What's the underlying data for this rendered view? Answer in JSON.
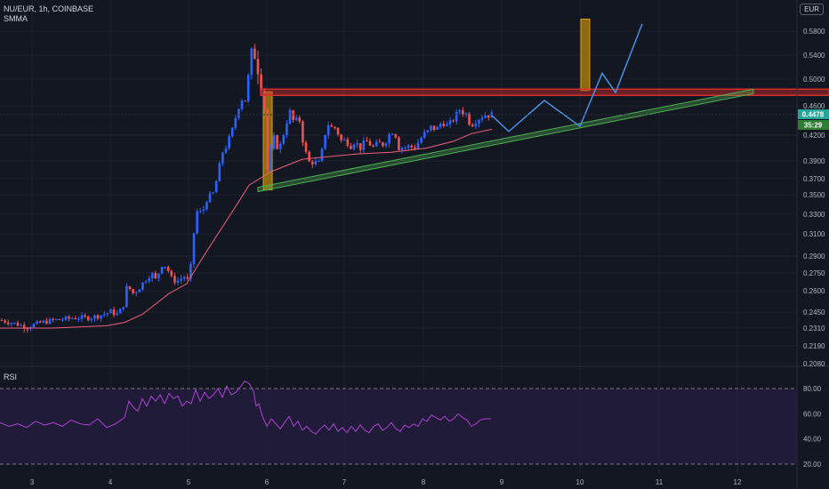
{
  "header": {
    "title": "NU/EUR, 1h, COINBASE",
    "indicator": "SMMA",
    "currency": "EUR"
  },
  "rsi_panel": {
    "label": "RSI",
    "levels": [
      "80.00",
      "60.00",
      "40.00",
      "20.00"
    ]
  },
  "price_tag": {
    "value": "0.4478",
    "timer": "35:29"
  },
  "colors": {
    "bg": "#131722",
    "up": "#2962ff",
    "down": "#ef5350",
    "smma": "#f06078",
    "rsi": "#b042d6",
    "resistance": "#d32f2f",
    "support": "#4caf50",
    "box": "#b8860b",
    "projection": "#4a90e2"
  },
  "chart_data": {
    "type": "candlestick",
    "y_ticks": [
      "0.5800",
      "0.5400",
      "0.5000",
      "0.4600",
      "0.4200",
      "0.3900",
      "0.3700",
      "0.3500",
      "0.3300",
      "0.3100",
      "0.2900",
      "0.2750",
      "0.2600",
      "0.2450",
      "0.2310",
      "0.2190",
      "0.2080"
    ],
    "x_ticks": [
      "3",
      "4",
      "5",
      "6",
      "7",
      "8",
      "9",
      "10",
      "11",
      "12"
    ],
    "close_path": [
      [
        0,
        0.238
      ],
      [
        12,
        0.236
      ],
      [
        30,
        0.232
      ],
      [
        47,
        0.236
      ],
      [
        62,
        0.238
      ],
      [
        84,
        0.24
      ],
      [
        100,
        0.24
      ],
      [
        112,
        0.242
      ],
      [
        124,
        0.245
      ],
      [
        132,
        0.243
      ],
      [
        138,
        0.248
      ],
      [
        143,
        0.264
      ],
      [
        150,
        0.258
      ],
      [
        156,
        0.262
      ],
      [
        162,
        0.268
      ],
      [
        170,
        0.275
      ],
      [
        176,
        0.268
      ],
      [
        181,
        0.283
      ],
      [
        187,
        0.281
      ],
      [
        193,
        0.27
      ],
      [
        199,
        0.268
      ],
      [
        207,
        0.272
      ],
      [
        213,
        0.267
      ],
      [
        217,
        0.305
      ],
      [
        222,
        0.335
      ],
      [
        227,
        0.33
      ],
      [
        232,
        0.345
      ],
      [
        240,
        0.352
      ],
      [
        245,
        0.375
      ],
      [
        250,
        0.4
      ],
      [
        256,
        0.41
      ],
      [
        262,
        0.43
      ],
      [
        267,
        0.455
      ],
      [
        272,
        0.47
      ],
      [
        277,
        0.468
      ],
      [
        281,
        0.535
      ],
      [
        286,
        0.545
      ],
      [
        289,
        0.525
      ],
      [
        293,
        0.502
      ],
      [
        297,
        0.465
      ],
      [
        300,
        0.375
      ],
      [
        305,
        0.405
      ],
      [
        309,
        0.42
      ],
      [
        313,
        0.4
      ],
      [
        317,
        0.415
      ],
      [
        321,
        0.43
      ],
      [
        325,
        0.455
      ],
      [
        329,
        0.44
      ],
      [
        333,
        0.44
      ],
      [
        337,
        0.44
      ],
      [
        341,
        0.41
      ],
      [
        345,
        0.395
      ],
      [
        349,
        0.385
      ],
      [
        353,
        0.392
      ],
      [
        357,
        0.383
      ],
      [
        361,
        0.395
      ],
      [
        365,
        0.42
      ],
      [
        369,
        0.435
      ],
      [
        373,
        0.43
      ],
      [
        377,
        0.43
      ],
      [
        381,
        0.42
      ],
      [
        385,
        0.41
      ],
      [
        389,
        0.417
      ],
      [
        393,
        0.405
      ],
      [
        397,
        0.413
      ],
      [
        401,
        0.41
      ],
      [
        405,
        0.405
      ],
      [
        409,
        0.41
      ],
      [
        413,
        0.413
      ],
      [
        417,
        0.408
      ],
      [
        421,
        0.405
      ],
      [
        425,
        0.412
      ],
      [
        429,
        0.408
      ],
      [
        433,
        0.412
      ],
      [
        437,
        0.42
      ],
      [
        441,
        0.425
      ],
      [
        445,
        0.42
      ],
      [
        449,
        0.403
      ],
      [
        453,
        0.407
      ],
      [
        457,
        0.405
      ],
      [
        461,
        0.408
      ],
      [
        465,
        0.404
      ],
      [
        469,
        0.41
      ],
      [
        473,
        0.416
      ],
      [
        477,
        0.422
      ],
      [
        481,
        0.425
      ],
      [
        485,
        0.432
      ],
      [
        489,
        0.428
      ],
      [
        493,
        0.43
      ],
      [
        497,
        0.44
      ],
      [
        501,
        0.432
      ],
      [
        505,
        0.435
      ],
      [
        509,
        0.44
      ],
      [
        513,
        0.448
      ],
      [
        517,
        0.455
      ],
      [
        521,
        0.45
      ],
      [
        525,
        0.448
      ],
      [
        529,
        0.432
      ],
      [
        533,
        0.438
      ],
      [
        537,
        0.442
      ],
      [
        541,
        0.445
      ],
      [
        545,
        0.448
      ],
      [
        549,
        0.447
      ],
      [
        553,
        0.448
      ]
    ],
    "smma_path": [
      [
        0,
        0.231
      ],
      [
        60,
        0.231
      ],
      [
        120,
        0.233
      ],
      [
        140,
        0.236
      ],
      [
        160,
        0.243
      ],
      [
        190,
        0.258
      ],
      [
        210,
        0.266
      ],
      [
        225,
        0.285
      ],
      [
        245,
        0.31
      ],
      [
        265,
        0.338
      ],
      [
        280,
        0.362
      ],
      [
        295,
        0.372
      ],
      [
        305,
        0.378
      ],
      [
        320,
        0.384
      ],
      [
        340,
        0.392
      ],
      [
        360,
        0.394
      ],
      [
        400,
        0.398
      ],
      [
        440,
        0.4
      ],
      [
        480,
        0.405
      ],
      [
        510,
        0.413
      ],
      [
        530,
        0.422
      ],
      [
        553,
        0.428
      ]
    ],
    "rsi_path": [
      [
        0,
        53
      ],
      [
        10,
        50
      ],
      [
        20,
        52
      ],
      [
        30,
        49
      ],
      [
        40,
        54
      ],
      [
        50,
        51
      ],
      [
        60,
        53
      ],
      [
        70,
        50
      ],
      [
        80,
        55
      ],
      [
        90,
        52
      ],
      [
        100,
        51
      ],
      [
        110,
        56
      ],
      [
        120,
        49
      ],
      [
        130,
        52
      ],
      [
        140,
        57
      ],
      [
        145,
        70
      ],
      [
        150,
        65
      ],
      [
        155,
        62
      ],
      [
        160,
        72
      ],
      [
        165,
        66
      ],
      [
        170,
        74
      ],
      [
        175,
        70
      ],
      [
        180,
        75
      ],
      [
        185,
        68
      ],
      [
        190,
        76
      ],
      [
        195,
        72
      ],
      [
        200,
        74
      ],
      [
        205,
        66
      ],
      [
        210,
        70
      ],
      [
        215,
        68
      ],
      [
        220,
        79
      ],
      [
        225,
        70
      ],
      [
        230,
        77
      ],
      [
        235,
        72
      ],
      [
        240,
        75
      ],
      [
        245,
        80
      ],
      [
        250,
        73
      ],
      [
        255,
        82
      ],
      [
        260,
        75
      ],
      [
        265,
        77
      ],
      [
        270,
        81
      ],
      [
        275,
        86
      ],
      [
        280,
        84
      ],
      [
        285,
        78
      ],
      [
        288,
        66
      ],
      [
        291,
        68
      ],
      [
        295,
        58
      ],
      [
        300,
        50
      ],
      [
        305,
        56
      ],
      [
        310,
        52
      ],
      [
        315,
        48
      ],
      [
        320,
        53
      ],
      [
        325,
        58
      ],
      [
        330,
        50
      ],
      [
        335,
        54
      ],
      [
        340,
        47
      ],
      [
        345,
        50
      ],
      [
        350,
        46
      ],
      [
        355,
        44
      ],
      [
        360,
        48
      ],
      [
        365,
        51
      ],
      [
        370,
        47
      ],
      [
        375,
        52
      ],
      [
        380,
        46
      ],
      [
        385,
        49
      ],
      [
        390,
        45
      ],
      [
        395,
        50
      ],
      [
        400,
        46
      ],
      [
        405,
        51
      ],
      [
        410,
        47
      ],
      [
        415,
        45
      ],
      [
        420,
        50
      ],
      [
        425,
        52
      ],
      [
        430,
        47
      ],
      [
        435,
        49
      ],
      [
        440,
        53
      ],
      [
        445,
        48
      ],
      [
        450,
        46
      ],
      [
        455,
        51
      ],
      [
        460,
        49
      ],
      [
        465,
        52
      ],
      [
        470,
        50
      ],
      [
        475,
        56
      ],
      [
        480,
        54
      ],
      [
        485,
        59
      ],
      [
        490,
        57
      ],
      [
        495,
        55
      ],
      [
        500,
        58
      ],
      [
        505,
        54
      ],
      [
        510,
        56
      ],
      [
        515,
        60
      ],
      [
        520,
        57
      ],
      [
        525,
        55
      ],
      [
        530,
        50
      ],
      [
        535,
        52
      ],
      [
        540,
        55
      ],
      [
        545,
        56
      ],
      [
        552,
        56
      ]
    ],
    "projection": [
      [
        552,
        0.448
      ],
      [
        572,
        0.425
      ],
      [
        612,
        0.468
      ],
      [
        652,
        0.432
      ],
      [
        677,
        0.51
      ],
      [
        692,
        0.48
      ],
      [
        722,
        0.592
      ]
    ],
    "resistance": {
      "price": 0.481,
      "x1": 293,
      "x2": 932
    },
    "support": {
      "x1": 290,
      "p1": 0.356,
      "x2": 847,
      "p2": 0.481
    },
    "boxes": [
      {
        "x": 296,
        "w": 10,
        "top": 0.481,
        "bottom": 0.356
      },
      {
        "x": 653,
        "w": 10,
        "top": 0.6,
        "bottom": 0.483
      }
    ]
  }
}
